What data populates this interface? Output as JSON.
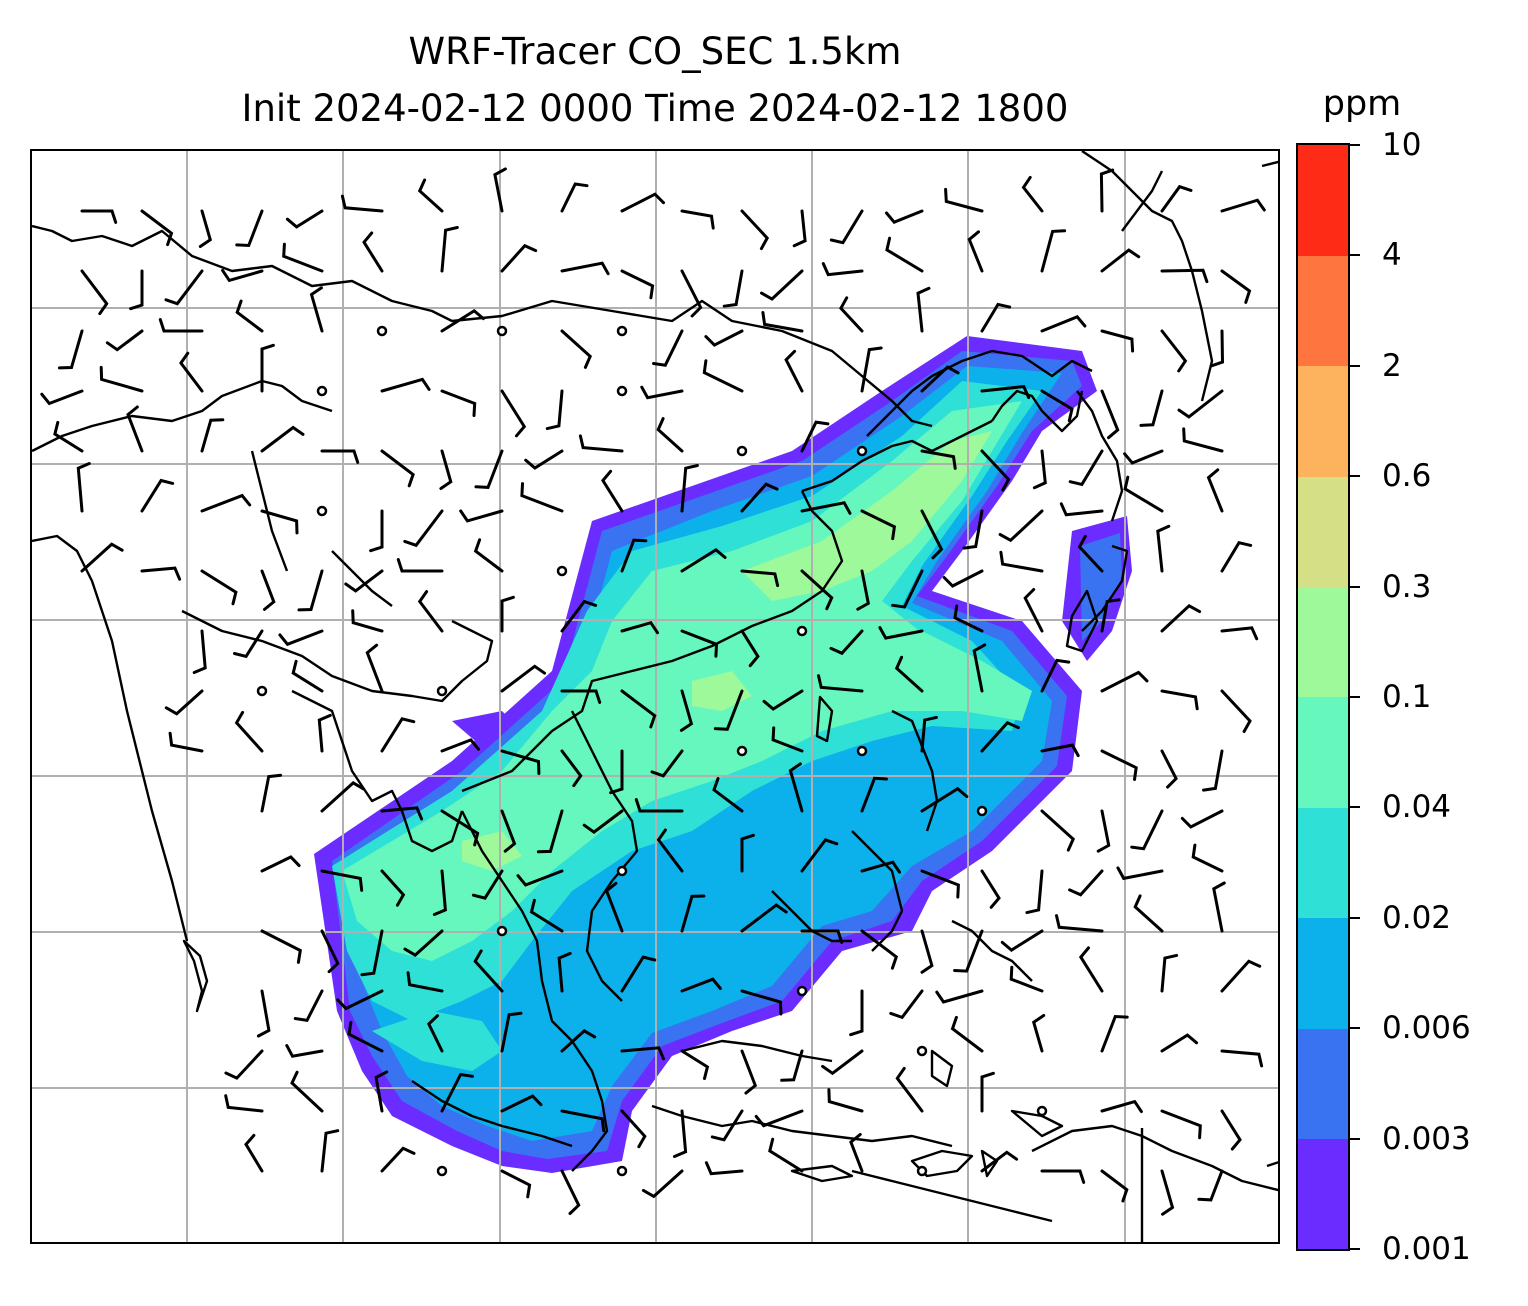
{
  "title": {
    "line1": "WRF-Tracer CO_SEC 1.5km",
    "line2": "Init 2024-02-12 0000 Time 2024-02-12 1800"
  },
  "colorbar": {
    "unit": "ppm",
    "levels": [
      "0.001",
      "0.003",
      "0.006",
      "0.02",
      "0.04",
      "0.1",
      "0.3",
      "0.6",
      "2",
      "4",
      "10"
    ],
    "colors": [
      "#6a2cff",
      "#3a73f2",
      "#0cb0ea",
      "#2fe0d6",
      "#66f7be",
      "#9df99a",
      "#d5e086",
      "#fdb35e",
      "#fe7540",
      "#fe2c17"
    ]
  },
  "map": {
    "gridline_color": "#b0b0b0",
    "coastline_color": "#000000",
    "barb_color": "#000000"
  }
}
